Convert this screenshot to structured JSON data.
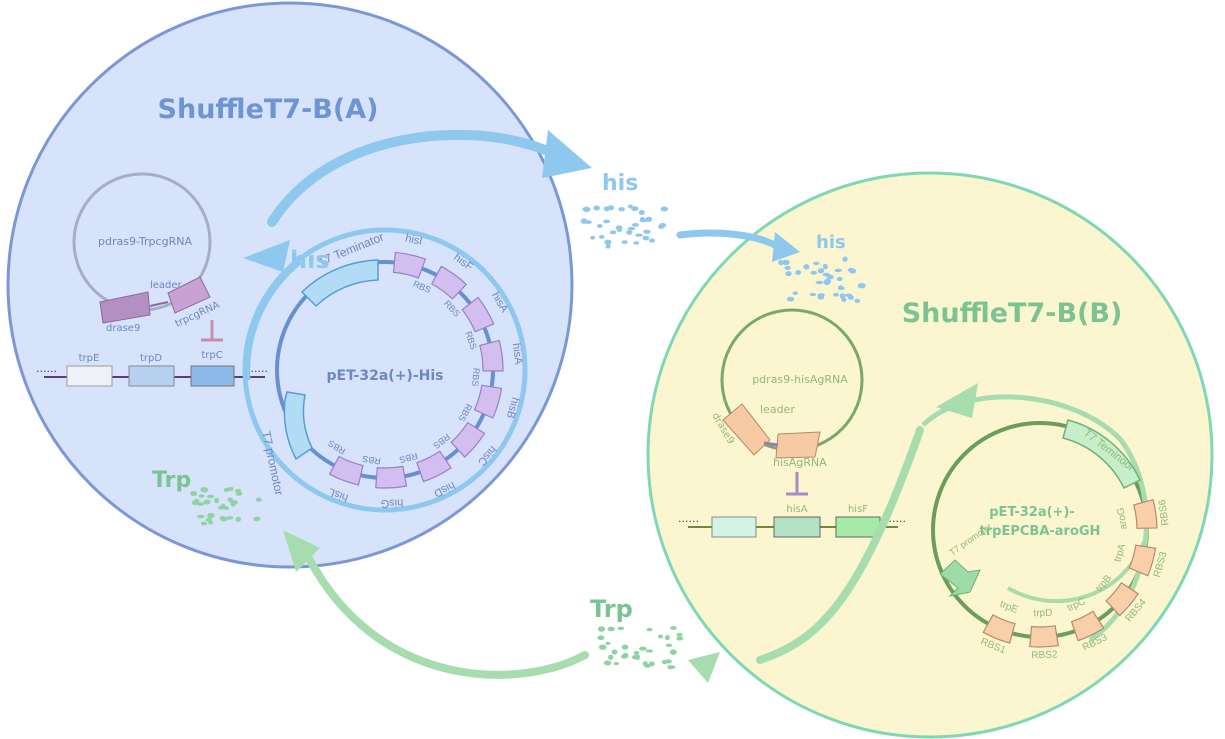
{
  "cellA": {
    "title": "ShuffleT7-B(A)",
    "crispr_plasmid": {
      "name": "pdras9-TrpcgRNA",
      "leader": "leader",
      "drase9": "drase9",
      "grna": "trpcgRNA",
      "repressed_gene": "trpC"
    },
    "operon": {
      "dots_left": "......",
      "dots_right": "......",
      "genes": [
        "trpE",
        "trpD",
        "trpC"
      ]
    },
    "expression_plasmid": {
      "name": "pET-32a(+)-His",
      "terminator": "T7 Teminator",
      "promoter": "T7 promotor",
      "genes": [
        "hisI",
        "hisF",
        "hisA",
        "hisA",
        "hisB",
        "hisC",
        "hisD",
        "hisG",
        "hisL"
      ],
      "rbs": [
        "RBS",
        "RBS",
        "RBS",
        "RBS",
        "RBS",
        "RBS",
        "RBS",
        "RBS",
        "RBS"
      ]
    },
    "product_label": "his",
    "import_label": "Trp"
  },
  "cellB": {
    "title": "ShuffleT7-B(B)",
    "crispr_plasmid": {
      "name": "pdras9-hisAgRNA",
      "leader": "leader",
      "drase9": "drase9",
      "grna": "hisAgRNA",
      "repressed_gene": "hisA"
    },
    "operon": {
      "dots_left": "......",
      "dots_right": "......",
      "genes": [
        "hisA",
        "hisF"
      ]
    },
    "expression_plasmid": {
      "name_line1": "pET-32a(+)-",
      "name_line2": "trpEPCBA-aroGH",
      "terminator": "T7 Teminoor",
      "promoter": "T7 promoter",
      "genes": [
        "aroG",
        "trpA",
        "trpB",
        "trpC",
        "trpD",
        "trpE"
      ],
      "rbs": [
        "RBS6",
        "RBS3",
        "RBS4",
        "RBS3",
        "RBS2",
        "RBS1"
      ]
    },
    "import_label": "his"
  },
  "exchange": {
    "his_label": "his",
    "trp_label": "Trp"
  },
  "colors": {
    "cellA_fill": "#d6e3fb",
    "cellA_stroke": "#7b97d6",
    "cellB_fill": "#fbf6cf",
    "cellB_stroke": "#7fd8b4",
    "his_blue": "#8ec8ef",
    "trp_green": "#8fd4a0",
    "title_blue": "#6f94d4",
    "title_green": "#7cc394"
  }
}
